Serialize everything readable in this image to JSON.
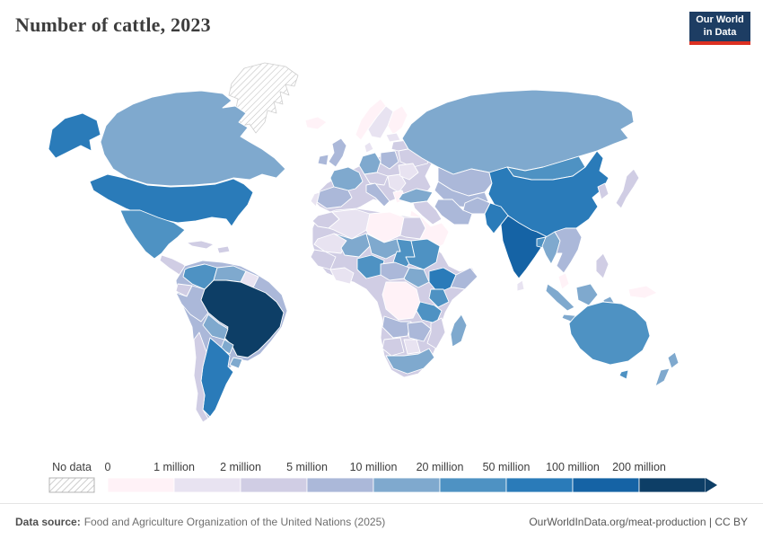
{
  "header": {
    "title": "Number of cattle, 2023"
  },
  "logo": {
    "line1": "Our World",
    "line2": "in Data",
    "bg": "#1d3d63",
    "accent": "#dc3022"
  },
  "legend": {
    "no_data_label": "No data"
  },
  "footer": {
    "source_label": "Data source:",
    "source_text": "Food and Agriculture Organization of the United Nations (2025)",
    "right_text": "OurWorldInData.org/meat-production | CC BY"
  },
  "chart_data": {
    "type": "choropleth",
    "title": "Number of cattle, 2023",
    "unit": "cattle (head)",
    "legend_position": "bottom",
    "legend_bins": [
      {
        "label": "0",
        "color": "#fff2f7",
        "range": "0-1 million"
      },
      {
        "label": "1 million",
        "color": "#e8e3f1",
        "range": "1-2 million"
      },
      {
        "label": "2 million",
        "color": "#d0cde4",
        "range": "2-5 million"
      },
      {
        "label": "5 million",
        "color": "#abb8d9",
        "range": "5-10 million"
      },
      {
        "label": "10 million",
        "color": "#7fa9ce",
        "range": "10-20 million"
      },
      {
        "label": "20 million",
        "color": "#4e92c3",
        "range": "20-50 million"
      },
      {
        "label": "50 million",
        "color": "#2a7bb9",
        "range": "50-100 million"
      },
      {
        "label": "100 million",
        "color": "#1563a5",
        "range": "100-200 million"
      },
      {
        "label": "200 million",
        "color": "#0d3e66",
        "range": "200+ million"
      }
    ],
    "no_data": {
      "label": "No data",
      "pattern": "diagonal-hatch"
    },
    "countries": {
      "greenland": -1,
      "canada": 4,
      "alaska": 6,
      "united-states": 6,
      "mexico": 5,
      "central-america": 2,
      "cuba": 2,
      "hispaniola": 2,
      "other-south-america": 3,
      "colombia": 5,
      "venezuela": 4,
      "guyana-suriname": 1,
      "ecuador": 2,
      "peru": 3,
      "brazil": 8,
      "bolivia": 4,
      "paraguay": 4,
      "uruguay": 4,
      "argentina": 6,
      "chile": 2,
      "iceland": 0,
      "other-europe": 2,
      "norway": 0,
      "sweden": 1,
      "finland": 0,
      "denmark": 1,
      "baltic-states": 1,
      "belarus": 2,
      "ukraine": 2,
      "poland": 3,
      "germany": 4,
      "france": 4,
      "spain": 3,
      "portugal": 1,
      "central-europe": 2,
      "italy": 3,
      "balkans": 1,
      "greece": 0,
      "romania-bulgaria": 1,
      "united-kingdom": 3,
      "ireland": 3,
      "russia": 4,
      "kazakhstan": 3,
      "central-asia": 3,
      "mongolia": 5,
      "china": 6,
      "turkey": 4,
      "iraq-syria": 2,
      "saudi-arabia": 0,
      "iran": 3,
      "afghanistan": 3,
      "pakistan": 6,
      "india": 7,
      "bangladesh": 5,
      "myanmar": 4,
      "indochina": 3,
      "malaysia": 0,
      "korea": 2,
      "japan": 2,
      "sri-lanka": 1,
      "philippines": 2,
      "borneo": 4,
      "indonesia": 4,
      "papua-new-guinea": 0,
      "other-africa": 2,
      "morocco": 2,
      "algeria": 1,
      "libya": 0,
      "egypt": 2,
      "mauritania": 1,
      "mali": 4,
      "niger": 4,
      "chad": 5,
      "sudan": 5,
      "west-africa": 2,
      "ghana-ivory-coast": 1,
      "nigeria": 5,
      "cameroon-car": 3,
      "ethiopia": 6,
      "somalia": 3,
      "south-sudan-uganda": 4,
      "kenya": 5,
      "dr-congo": 0,
      "tanzania": 5,
      "angola": 3,
      "zambia-zimbabwe": 3,
      "mozambique": 2,
      "namibia": 2,
      "botswana": 1,
      "south-africa": 4,
      "madagascar": 4,
      "australia": 5,
      "tasmania": 5,
      "new-zealand": 4
    }
  }
}
